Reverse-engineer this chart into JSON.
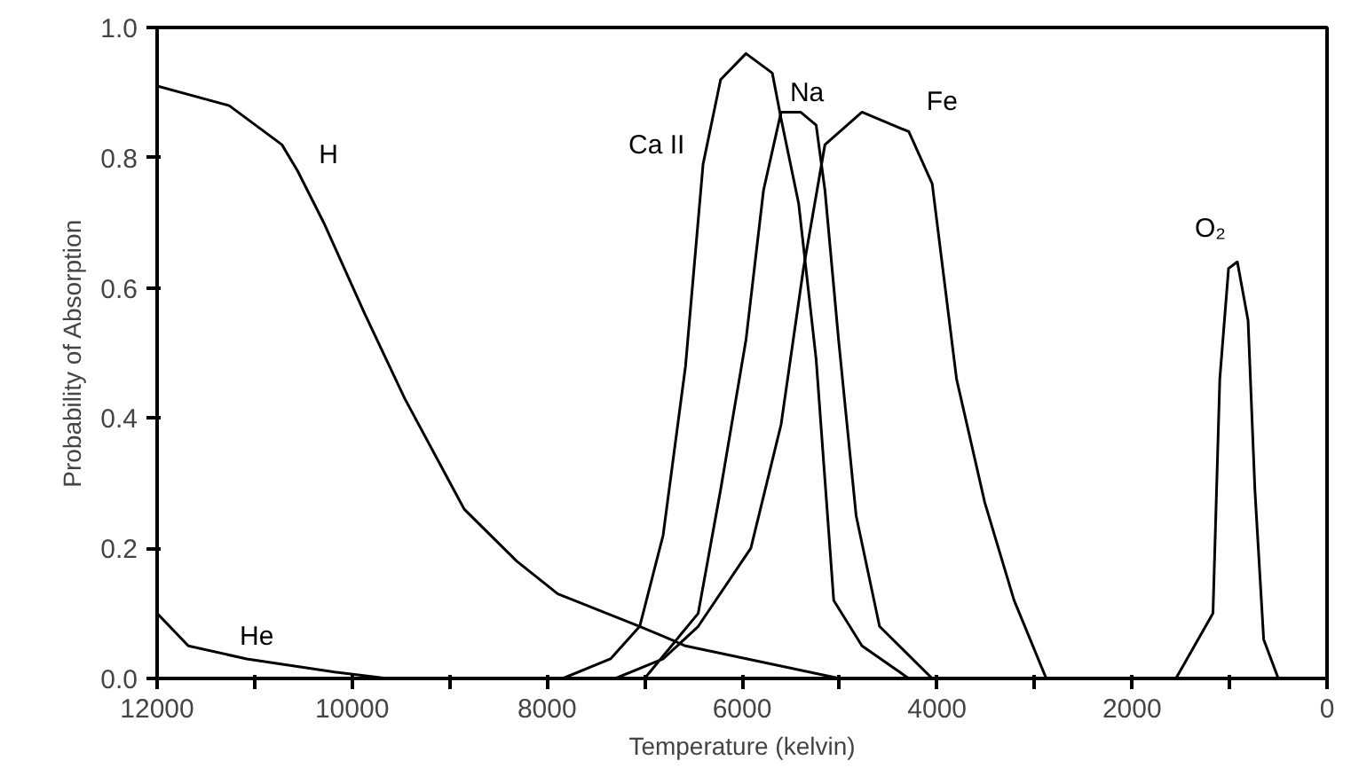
{
  "chart_data": {
    "type": "line",
    "xlabel": "Temperature (kelvin)",
    "ylabel": "Probability of Absorption",
    "xlim": [
      12000,
      0
    ],
    "ylim": [
      0,
      1.0
    ],
    "xticks": [
      12000,
      {
        "value": 11000,
        "label": null
      },
      10000,
      {
        "value": 9000,
        "label": null
      },
      8000,
      {
        "value": 7000,
        "label": null
      },
      6000,
      {
        "value": 5000,
        "label": null
      },
      4000,
      {
        "value": 3000,
        "label": null
      },
      2000,
      {
        "value": 1000,
        "label": null
      },
      0
    ],
    "yticks": [
      {
        "value": 0,
        "label": "0.0"
      },
      0.2,
      0.4,
      0.6,
      0.8,
      {
        "value": 1.0,
        "label": "1.0"
      }
    ],
    "grid": false,
    "marker": "none",
    "line_style": "solid",
    "series": [
      {
        "name": "H",
        "color": "#000000",
        "x": [
          12000,
          11260,
          10720,
          10560,
          10290,
          9870,
          9460,
          8850,
          8310,
          7890,
          7050,
          6810,
          6580,
          5000
        ],
        "values": [
          0.91,
          0.88,
          0.82,
          0.78,
          0.7,
          0.56,
          0.43,
          0.26,
          0.18,
          0.13,
          0.08,
          0.065,
          0.05,
          0.0
        ]
      },
      {
        "name": "He",
        "color": "#000000",
        "x": [
          12000,
          11680,
          11080,
          10180,
          9640
        ],
        "values": [
          0.1,
          0.05,
          0.03,
          0.01,
          0.0
        ]
      },
      {
        "name": "Ca II",
        "color": "#000000",
        "x": [
          7840,
          7350,
          7050,
          6810,
          6580,
          6400,
          6220,
          5960,
          5690,
          5600,
          5420,
          5240,
          5060,
          4770,
          4290
        ],
        "values": [
          0.0,
          0.03,
          0.08,
          0.22,
          0.48,
          0.79,
          0.92,
          0.96,
          0.93,
          0.86,
          0.73,
          0.49,
          0.12,
          0.05,
          0.0
        ]
      },
      {
        "name": "Na",
        "color": "#000000",
        "x": [
          7000,
          6450,
          6220,
          5960,
          5780,
          5600,
          5400,
          5240,
          5150,
          5010,
          4830,
          4590,
          4050
        ],
        "values": [
          0.0,
          0.1,
          0.29,
          0.52,
          0.75,
          0.87,
          0.87,
          0.85,
          0.75,
          0.52,
          0.25,
          0.08,
          0.0
        ]
      },
      {
        "name": "Fe",
        "color": "#000000",
        "x": [
          7300,
          6810,
          6450,
          5910,
          5600,
          5370,
          5150,
          4770,
          4290,
          4050,
          3800,
          3510,
          3210,
          2880
        ],
        "values": [
          0.0,
          0.03,
          0.08,
          0.2,
          0.39,
          0.63,
          0.82,
          0.87,
          0.84,
          0.76,
          0.46,
          0.27,
          0.12,
          0.0
        ]
      },
      {
        "name": "O₂",
        "color": "#000000",
        "x": [
          1550,
          1170,
          1100,
          1010,
          920,
          810,
          740,
          650,
          500
        ],
        "values": [
          0.0,
          0.1,
          0.46,
          0.63,
          0.64,
          0.55,
          0.29,
          0.06,
          0.0
        ]
      }
    ]
  }
}
